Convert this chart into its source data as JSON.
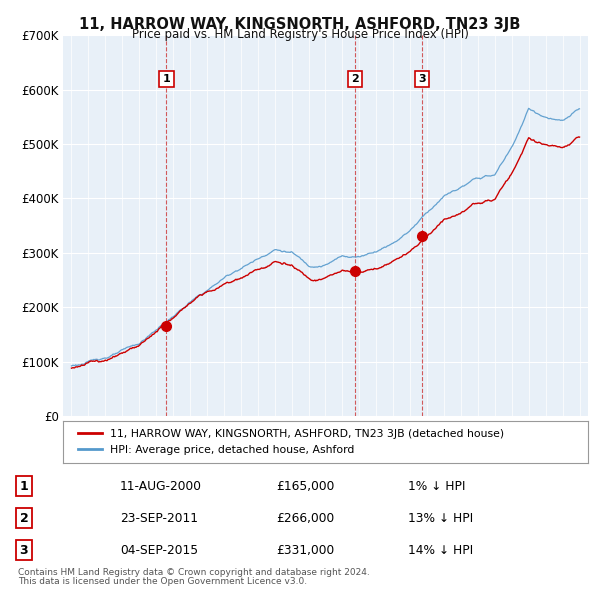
{
  "title": "11, HARROW WAY, KINGSNORTH, ASHFORD, TN23 3JB",
  "subtitle": "Price paid vs. HM Land Registry's House Price Index (HPI)",
  "ylim": [
    0,
    700000
  ],
  "yticks": [
    0,
    100000,
    200000,
    300000,
    400000,
    500000,
    600000,
    700000
  ],
  "ytick_labels": [
    "£0",
    "£100K",
    "£200K",
    "£300K",
    "£400K",
    "£500K",
    "£600K",
    "£700K"
  ],
  "sale_color": "#cc0000",
  "hpi_color": "#5599cc",
  "sale_dates": [
    2000.61,
    2011.73,
    2015.68
  ],
  "sale_prices": [
    165000,
    266000,
    331000
  ],
  "sale_labels": [
    "1",
    "2",
    "3"
  ],
  "vline_dates": [
    2000.61,
    2011.73,
    2015.68
  ],
  "legend_sale": "11, HARROW WAY, KINGSNORTH, ASHFORD, TN23 3JB (detached house)",
  "legend_hpi": "HPI: Average price, detached house, Ashford",
  "table_data": [
    [
      "1",
      "11-AUG-2000",
      "£165,000",
      "1% ↓ HPI"
    ],
    [
      "2",
      "23-SEP-2011",
      "£266,000",
      "13% ↓ HPI"
    ],
    [
      "3",
      "04-SEP-2015",
      "£331,000",
      "14% ↓ HPI"
    ]
  ],
  "footnote1": "Contains HM Land Registry data © Crown copyright and database right 2024.",
  "footnote2": "This data is licensed under the Open Government Licence v3.0.",
  "bg_color": "#ffffff",
  "plot_bg_color": "#e8f0f8",
  "grid_color": "#ffffff"
}
